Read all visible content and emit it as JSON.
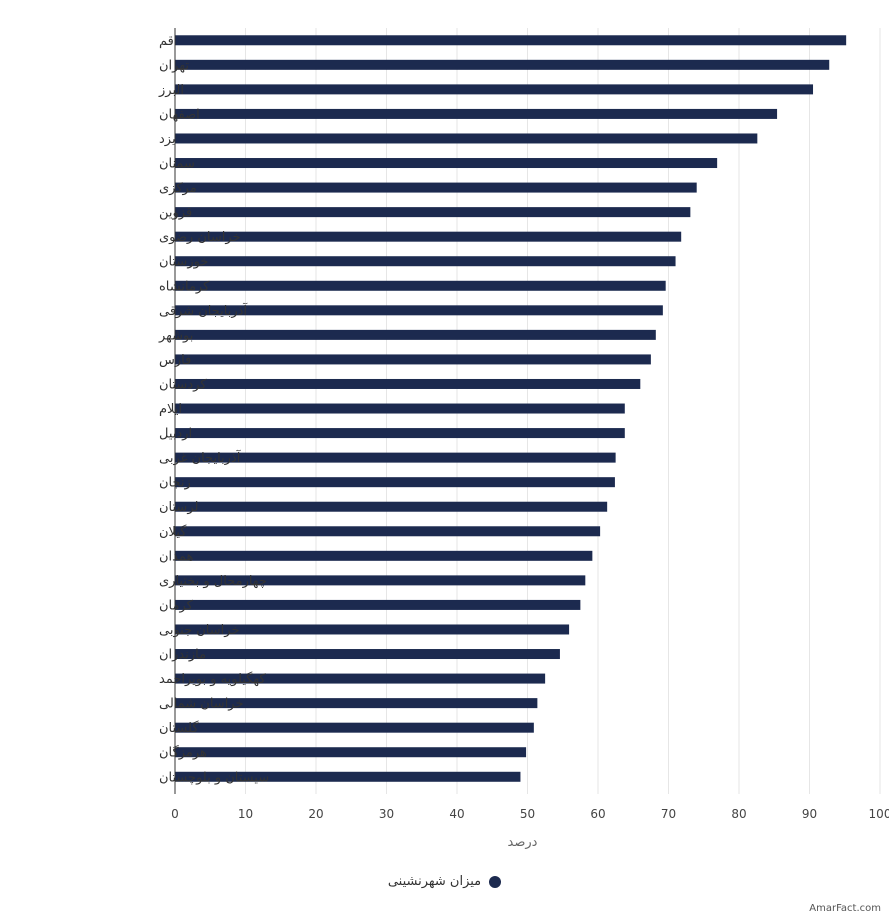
{
  "chart_data": {
    "type": "bar",
    "orientation": "horizontal",
    "categories": [
      "قم",
      "تهران",
      "البرز",
      "اصفهان",
      "یزد",
      "سمنان",
      "مرکزی",
      "قزوین",
      "خراسان رضوی",
      "خوزستان",
      "کرمانشاه",
      "آذربایجان شرقی",
      "بوشهر",
      "فارس",
      "کردستان",
      "ایلام",
      "اردبیل",
      "آذربایجان غربی",
      "زنجان",
      "لرستان",
      "گیلان",
      "همدان",
      "چهارمحال و بختیاری",
      "کرمان",
      "خراسان جنوبی",
      "مازندران",
      "کهگیلویه و بویراحمد",
      "خراسان شمالی",
      "گلستان",
      "هرمزگان",
      "سیستان و بلوچستان"
    ],
    "series": [
      {
        "name": "میزان شهرنشینی",
        "values": [
          95.2,
          92.8,
          90.5,
          85.4,
          82.6,
          76.9,
          74.0,
          73.1,
          71.8,
          71.0,
          69.6,
          69.2,
          68.2,
          67.5,
          66.0,
          63.8,
          63.8,
          62.5,
          62.4,
          61.3,
          60.3,
          59.2,
          58.2,
          57.5,
          55.9,
          54.6,
          52.5,
          51.4,
          50.9,
          49.8,
          49.0
        ]
      }
    ],
    "xlabel": "درصد",
    "xlim": [
      0,
      100
    ],
    "xticks": [
      0,
      10,
      20,
      30,
      40,
      50,
      60,
      70,
      80,
      90,
      100
    ],
    "grid": true,
    "legend_position": "bottom",
    "bar_color": "#1c2a4f"
  },
  "watermark": "AmarFact.com"
}
